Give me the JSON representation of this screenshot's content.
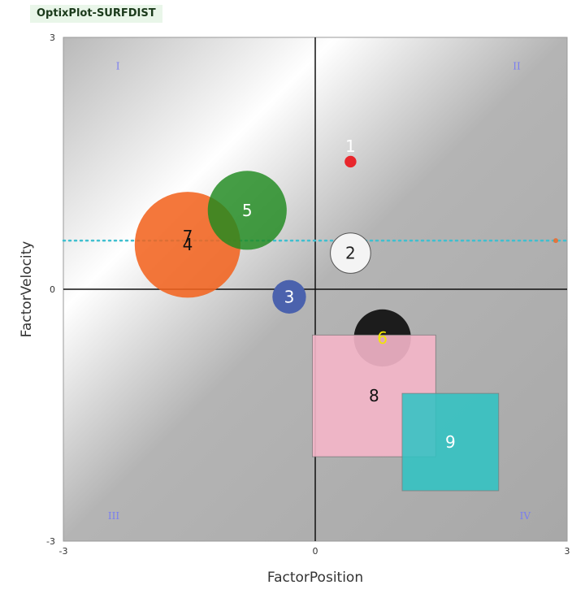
{
  "app": {
    "title": "OptixPlot-SURFDIST"
  },
  "chart_data": {
    "type": "scatter",
    "title": "",
    "xlabel": "FactorPosition",
    "ylabel": "FactorVelocity",
    "xlim": [
      -3,
      3
    ],
    "ylim": [
      -3,
      3
    ],
    "x_ticks": [
      "-3",
      "0",
      "3"
    ],
    "y_ticks": [
      "-3",
      "0",
      "3"
    ],
    "quadrant_labels": [
      "I",
      "II",
      "III",
      "IV"
    ],
    "reference_line": {
      "y": 0.58,
      "color": "#3fbfcf",
      "style": "dotted"
    },
    "points": [
      {
        "label": "1",
        "x": 0.42,
        "y": 1.52,
        "shape": "circle",
        "size": 0.07,
        "fill": "#e8262c",
        "text_color": "#ffffff"
      },
      {
        "label": "2",
        "x": 0.42,
        "y": 0.43,
        "shape": "circle",
        "size": 0.24,
        "fill": "#f4f4f4",
        "text_color": "#222222",
        "stroke": "#555555"
      },
      {
        "label": "3",
        "x": -0.31,
        "y": -0.09,
        "shape": "circle",
        "size": 0.2,
        "fill": "#4b62ad",
        "text_color": "#ffffff"
      },
      {
        "label": "4",
        "x": -1.52,
        "y": 0.53,
        "shape": "circle",
        "size": 0.63,
        "fill": "#f36420",
        "text_color": "#111111",
        "opacity": 0.88
      },
      {
        "label": "5",
        "x": -0.81,
        "y": 0.94,
        "shape": "circle",
        "size": 0.47,
        "fill": "#1f8a1f",
        "text_color": "#ffffff",
        "opacity": 0.82
      },
      {
        "label": "6",
        "x": 0.8,
        "y": -0.58,
        "shape": "circle",
        "size": 0.34,
        "fill": "#1c1c1c",
        "text_color": "#f2e600"
      },
      {
        "label": "7",
        "x": -1.52,
        "y": 0.63,
        "shape": "text",
        "size": 0,
        "fill": "#f36420",
        "text_color": "#111111"
      },
      {
        "label": "8",
        "x": 0.7,
        "y": -1.27,
        "shape": "square",
        "size": [
          1.47,
          1.45
        ],
        "fill": "#f5b6c9",
        "text_color": "#111111",
        "opacity": 0.9
      },
      {
        "label": "9",
        "x": 1.61,
        "y": -1.82,
        "shape": "square",
        "size": [
          1.15,
          1.16
        ],
        "fill": "#2ec4c4",
        "text_color": "#ffffff",
        "opacity": 0.85
      }
    ]
  }
}
